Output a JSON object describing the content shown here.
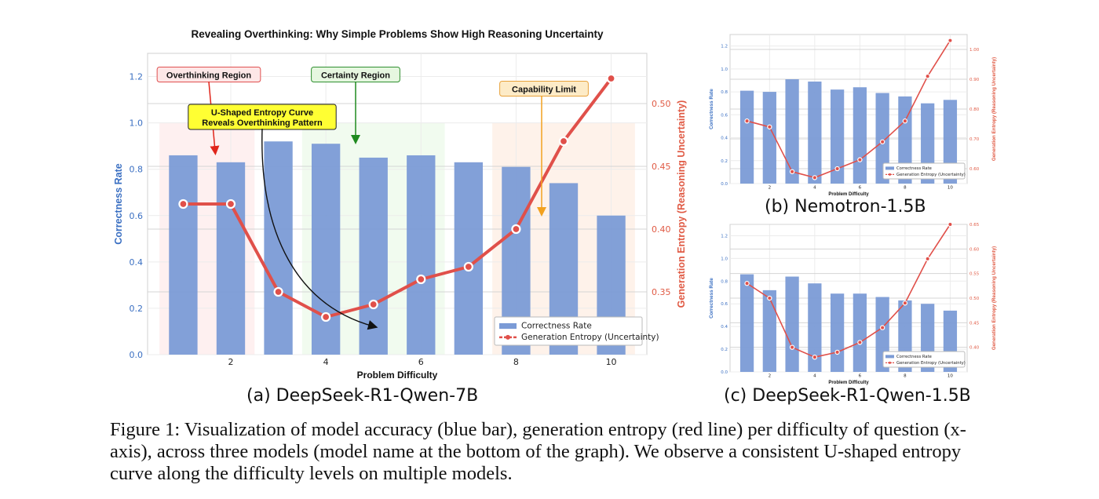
{
  "figure_caption": "Figure 1: Visualization of model accuracy (blue bar), generation entropy (red line) per difficulty of question (x-axis), across three models (model name at the bottom of the graph). We observe a consistent U-shaped entropy curve along the difficulty levels on multiple models.",
  "colors": {
    "bar": "#7b9bd6",
    "line": "#e0504a",
    "left_axis": "#3a6fc2",
    "right_axis": "#e05a44"
  },
  "chart_data": [
    {
      "type": "bar",
      "panel_label": "(a) DeepSeek-R1-Qwen-7B",
      "title": "Revealing Overthinking: Why Simple Problems Show High Reasoning Uncertainty",
      "xlabel": "Problem Difficulty",
      "ylabel": "Correctness Rate",
      "y2label": "Generation Entropy (Reasoning Uncertainty)",
      "categories": [
        1,
        2,
        3,
        4,
        5,
        6,
        7,
        8,
        9,
        10
      ],
      "xticks": [
        2,
        4,
        6,
        8,
        10
      ],
      "ylim": [
        0,
        1.3
      ],
      "yticks": [
        0.0,
        0.2,
        0.4,
        0.6,
        0.8,
        1.0,
        1.2
      ],
      "y2lim": [
        0.3,
        0.54
      ],
      "y2ticks": [
        0.35,
        0.4,
        0.45,
        0.5
      ],
      "series": [
        {
          "name": "Correctness Rate",
          "type": "bar",
          "axis": "left",
          "values": [
            0.86,
            0.83,
            0.92,
            0.91,
            0.85,
            0.86,
            0.83,
            0.81,
            0.74,
            0.6
          ]
        },
        {
          "name": "Generation Entropy (Uncertainty)",
          "type": "line",
          "axis": "right",
          "values": [
            0.42,
            0.42,
            0.35,
            0.33,
            0.34,
            0.36,
            0.37,
            0.4,
            0.47,
            0.52
          ]
        }
      ],
      "annotations": [
        {
          "text": "Overthinking Region",
          "points_to_x": 1.5
        },
        {
          "text": "Certainty Region",
          "points_to_x": 4.5
        },
        {
          "text": "Capability Limit",
          "points_to_x": 8.5
        },
        {
          "text": "U-Shaped Entropy Curve Reveals Overthinking Pattern",
          "points_to_x": 5
        }
      ],
      "legend_position": "lower-right",
      "grid": true
    },
    {
      "type": "bar",
      "panel_label": "(b) Nemotron-1.5B",
      "title": "",
      "xlabel": "Problem Difficulty",
      "ylabel": "Correctness Rate",
      "y2label": "Generation Entropy (Reasoning Uncertainty)",
      "categories": [
        1,
        2,
        3,
        4,
        5,
        6,
        7,
        8,
        9,
        10
      ],
      "xticks": [
        2,
        4,
        6,
        8,
        10
      ],
      "ylim": [
        0,
        1.3
      ],
      "yticks": [
        0.0,
        0.2,
        0.4,
        0.6,
        0.8,
        1.0,
        1.2
      ],
      "y2lim": [
        0.55,
        1.05
      ],
      "y2ticks": [
        0.6,
        0.7,
        0.8,
        0.9,
        1.0
      ],
      "series": [
        {
          "name": "Correctness Rate",
          "type": "bar",
          "axis": "left",
          "values": [
            0.81,
            0.8,
            0.91,
            0.89,
            0.82,
            0.84,
            0.79,
            0.76,
            0.7,
            0.73
          ]
        },
        {
          "name": "Generation Entropy (Uncertainty)",
          "type": "line",
          "axis": "right",
          "values": [
            0.76,
            0.74,
            0.59,
            0.57,
            0.6,
            0.63,
            0.69,
            0.76,
            0.91,
            1.03
          ]
        }
      ],
      "legend_position": "lower-right",
      "grid": true
    },
    {
      "type": "bar",
      "panel_label": "(c) DeepSeek-R1-Qwen-1.5B",
      "title": "",
      "xlabel": "Problem Difficulty",
      "ylabel": "Correctness Rate",
      "y2label": "Generation Entropy (Reasoning Uncertainty)",
      "categories": [
        1,
        2,
        3,
        4,
        5,
        6,
        7,
        8,
        9,
        10
      ],
      "xticks": [
        2,
        4,
        6,
        8,
        10
      ],
      "ylim": [
        0,
        1.3
      ],
      "yticks": [
        0.0,
        0.2,
        0.4,
        0.6,
        0.8,
        1.0,
        1.2
      ],
      "y2lim": [
        0.35,
        0.65
      ],
      "y2ticks": [
        0.4,
        0.45,
        0.5,
        0.55,
        0.6,
        0.65
      ],
      "series": [
        {
          "name": "Correctness Rate",
          "type": "bar",
          "axis": "left",
          "values": [
            0.86,
            0.72,
            0.84,
            0.78,
            0.69,
            0.69,
            0.66,
            0.63,
            0.6,
            0.54
          ]
        },
        {
          "name": "Generation Entropy (Uncertainty)",
          "type": "line",
          "axis": "right",
          "values": [
            0.53,
            0.5,
            0.4,
            0.38,
            0.39,
            0.41,
            0.44,
            0.49,
            0.58,
            0.65
          ]
        }
      ],
      "legend_position": "lower-right",
      "grid": true
    }
  ]
}
